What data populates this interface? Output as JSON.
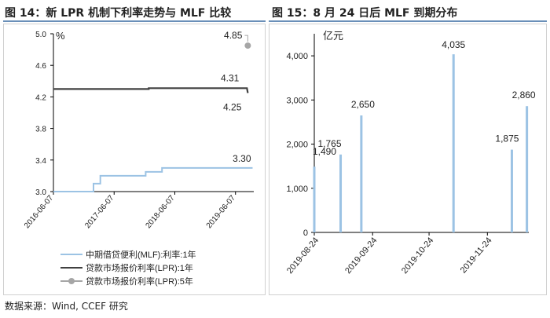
{
  "left_figure": {
    "title": "图 14：新 LPR 机制下利率走势与 MLF 比较"
  },
  "right_figure": {
    "title": "图 15：8 月 24 日后 MLF 到期分布"
  },
  "source": "数据来源：Wind, CCEF 研究",
  "colors": {
    "rule": "#6a8fb8",
    "mlf": "#9cc3e4",
    "lpr1": "#404040",
    "lpr5": "#a6a6a6",
    "bar": "#9cc3e4",
    "axis": "#000000"
  },
  "chart_data": [
    {
      "type": "line",
      "unit_label": "%",
      "ylim": [
        3.0,
        5.0
      ],
      "y_ticks": [
        "3.0",
        "3.4",
        "3.8",
        "4.2",
        "4.6",
        "5.0"
      ],
      "x_ticks": [
        "2016-06-07",
        "2017-06-07",
        "2018-06-07",
        "2019-06-07"
      ],
      "grid": false,
      "legend_position": "bottom",
      "series": [
        {
          "name": "中期借贷便利(MLF):利率:1年",
          "points": [
            [
              "2016-06-07",
              3.0
            ],
            [
              "2017-02-03",
              3.0
            ],
            [
              "2017-02-03",
              3.1
            ],
            [
              "2017-03-16",
              3.1
            ],
            [
              "2017-03-16",
              3.2
            ],
            [
              "2017-12-14",
              3.2
            ],
            [
              "2017-12-14",
              3.25
            ],
            [
              "2018-03-22",
              3.25
            ],
            [
              "2018-03-22",
              3.3
            ],
            [
              "2019-09-18",
              3.3
            ]
          ],
          "end_label": "3.30"
        },
        {
          "name": "贷款市场报价利率(LPR):1年",
          "points": [
            [
              "2016-06-07",
              4.3
            ],
            [
              "2018-01-01",
              4.3
            ],
            [
              "2018-01-01",
              4.31
            ],
            [
              "2019-08-15",
              4.31
            ],
            [
              "2019-08-20",
              4.25
            ]
          ],
          "labels": [
            "4.31",
            "4.25"
          ]
        },
        {
          "name": "贷款市场报价利率(LPR):5年",
          "points": [
            [
              "2019-08-20",
              4.85
            ]
          ],
          "end_label": "4.85"
        }
      ]
    },
    {
      "type": "bar",
      "unit_label": "亿元",
      "ylim": [
        0,
        4500
      ],
      "y_ticks": [
        "0",
        "1,000",
        "2,000",
        "3,000",
        "4,000"
      ],
      "x_ticks": [
        "2019-08-24",
        "2019-09-24",
        "2019-10-24",
        "2019-11-24"
      ],
      "grid": false,
      "bars": [
        {
          "date": "2019-08-24",
          "value": 1490,
          "label": "1,490"
        },
        {
          "date": "2019-09-07",
          "value": 1765,
          "label": "1,765"
        },
        {
          "date": "2019-09-18",
          "value": 2650,
          "label": "2,650"
        },
        {
          "date": "2019-11-06",
          "value": 4035,
          "label": "4,035"
        },
        {
          "date": "2019-12-07",
          "value": 1875,
          "label": "1,875"
        },
        {
          "date": "2019-12-15",
          "value": 2860,
          "label": "2,860"
        }
      ]
    }
  ]
}
